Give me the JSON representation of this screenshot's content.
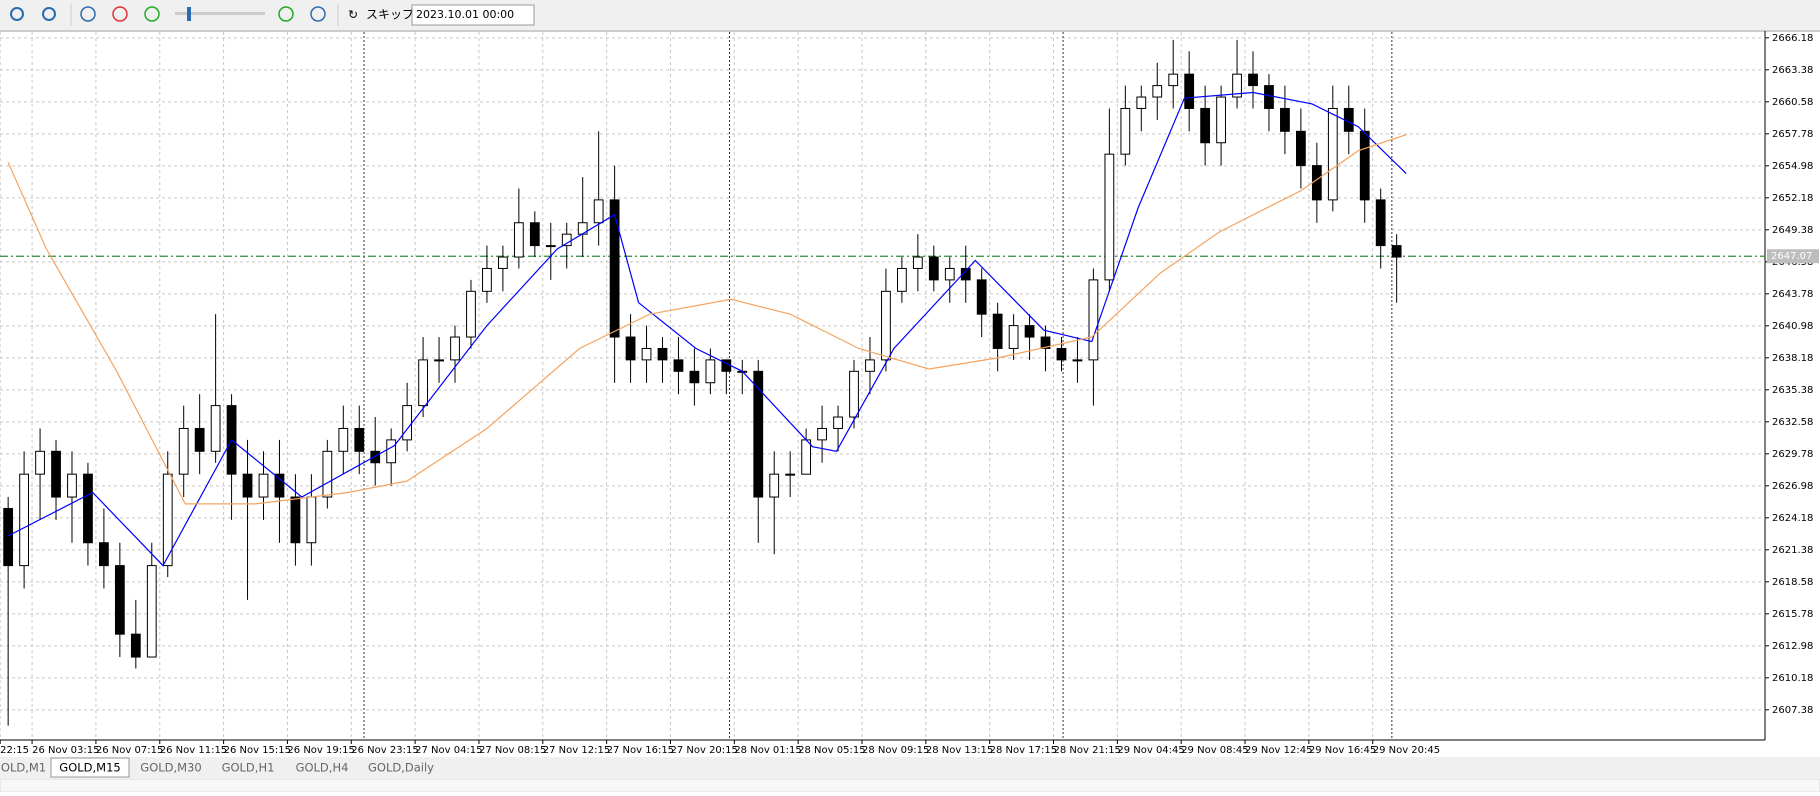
{
  "toolbar": {
    "skip_label": "スキップ",
    "date": "2023.10.01 00:00"
  },
  "tabs": [
    "OLD,M1",
    "GOLD,M15",
    "GOLD,M30",
    "GOLD,H1",
    "GOLD,H4",
    "GOLD,Daily"
  ],
  "active_tab": 1,
  "chart_data": {
    "type": "candlestick",
    "open": [
      2625,
      2620,
      2628,
      2630,
      2626,
      2628,
      2622,
      2620,
      2614,
      2612,
      2620,
      2628,
      2632,
      2630,
      2634,
      2628,
      2626,
      2628,
      2626,
      2622,
      2626,
      2630,
      2632,
      2630,
      2629,
      2631,
      2634,
      2638,
      2638,
      2640,
      2644,
      2646,
      2647,
      2650,
      2648,
      2648,
      2649,
      2650,
      2652,
      2640,
      2638,
      2639,
      2638,
      2637,
      2636,
      2638,
      2637,
      2637,
      2626,
      2628,
      2628,
      2631,
      2632,
      2633,
      2637,
      2638,
      2644,
      2646,
      2647,
      2645,
      2646,
      2645,
      2642,
      2639,
      2641,
      2640,
      2639,
      2638,
      2638,
      2645,
      2656,
      2660,
      2661,
      2662,
      2663,
      2660,
      2657,
      2661,
      2663,
      2662,
      2660,
      2658,
      2655,
      2652,
      2660,
      2658,
      2652,
      2648
    ],
    "high": [
      2626,
      2630,
      2632,
      2631,
      2630,
      2629,
      2625,
      2622,
      2617,
      2622,
      2630,
      2634,
      2635,
      2642,
      2635,
      2631,
      2630,
      2631,
      2628,
      2628,
      2631,
      2634,
      2634,
      2633,
      2632,
      2636,
      2640,
      2640,
      2641,
      2645,
      2648,
      2648,
      2653,
      2651,
      2650,
      2650,
      2654,
      2658,
      2655,
      2642,
      2641,
      2640,
      2640,
      2639,
      2639,
      2638,
      2638,
      2638,
      2630,
      2630,
      2632,
      2634,
      2634,
      2638,
      2640,
      2646,
      2647,
      2649,
      2648,
      2647,
      2648,
      2646,
      2643,
      2642,
      2642,
      2641,
      2640,
      2640,
      2646,
      2660,
      2662,
      2662,
      2664,
      2666,
      2665,
      2662,
      2662,
      2666,
      2665,
      2663,
      2662,
      2660,
      2657,
      2662,
      2662,
      2660,
      2653,
      2649
    ],
    "low": [
      2606,
      2618,
      2624,
      2624,
      2622,
      2620,
      2618,
      2612,
      2611,
      2612,
      2619,
      2626,
      2628,
      2629,
      2624,
      2617,
      2624,
      2622,
      2620,
      2620,
      2625,
      2628,
      2628,
      2627,
      2627,
      2630,
      2633,
      2636,
      2636,
      2639,
      2643,
      2644,
      2646,
      2647,
      2645,
      2646,
      2647,
      2648,
      2636,
      2636,
      2636,
      2636,
      2635,
      2634,
      2635,
      2635,
      2635,
      2622,
      2621,
      2626,
      2628,
      2629,
      2630,
      2632,
      2635,
      2637,
      2643,
      2644,
      2644,
      2643,
      2643,
      2640,
      2637,
      2638,
      2638,
      2637,
      2637,
      2636,
      2634,
      2644,
      2655,
      2658,
      2659,
      2660,
      2658,
      2655,
      2655,
      2660,
      2660,
      2658,
      2656,
      2653,
      2650,
      2651,
      2656,
      2650,
      2646,
      2643
    ],
    "close": [
      2620,
      2628,
      2630,
      2626,
      2628,
      2622,
      2620,
      2614,
      2612,
      2620,
      2628,
      2632,
      2630,
      2634,
      2628,
      2626,
      2628,
      2626,
      2622,
      2626,
      2630,
      2632,
      2630,
      2629,
      2631,
      2634,
      2638,
      2638,
      2640,
      2644,
      2646,
      2647,
      2650,
      2648,
      2648,
      2649,
      2650,
      2652,
      2640,
      2638,
      2639,
      2638,
      2637,
      2636,
      2638,
      2637,
      2637,
      2626,
      2628,
      2628,
      2631,
      2632,
      2633,
      2637,
      2638,
      2644,
      2646,
      2647,
      2645,
      2646,
      2645,
      2642,
      2639,
      2641,
      2640,
      2639,
      2638,
      2638,
      2645,
      2656,
      2660,
      2661,
      2662,
      2663,
      2660,
      2657,
      2661,
      2663,
      2662,
      2660,
      2658,
      2655,
      2652,
      2660,
      2658,
      2652,
      2648,
      2647
    ],
    "bull_color": "#ffffff",
    "bear_color": "#000000",
    "candle_outline": "#000000",
    "lines": [
      {
        "color": "#0000ff",
        "x": [
          0,
          5.3,
          9.7,
          14,
          18.4,
          24.2,
          30,
          34.4,
          38,
          39.5,
          43.1,
          46,
          50.4,
          51.9,
          55.5,
          60.6,
          64.9,
          67.9,
          70.8,
          73.7,
          78,
          81.7,
          84.6,
          87.6
        ],
        "values": [
          2622.6,
          2626.4,
          2620,
          2631,
          2626,
          2630.5,
          2641,
          2647.7,
          2650.7,
          2643,
          2639,
          2637,
          2630.4,
          2630,
          2639,
          2646.7,
          2640.6,
          2639.6,
          2651.3,
          2660.9,
          2661.4,
          2660.4,
          2658.4,
          2654.3
        ]
      },
      {
        "color": "#f4a460",
        "x": [
          0,
          2.4,
          6.8,
          11.1,
          15.5,
          21.3,
          25,
          30,
          35.8,
          40.2,
          45.3,
          49,
          53.3,
          57.7,
          62.1,
          67.9,
          72.2,
          75.9,
          81,
          84.6,
          87.6
        ],
        "values": [
          2655.3,
          2647.7,
          2637,
          2625.4,
          2625.4,
          2626.4,
          2627.4,
          2632,
          2639,
          2642,
          2643.3,
          2642,
          2639,
          2637.2,
          2638.2,
          2640,
          2645.6,
          2649.2,
          2652.8,
          2656.3,
          2657.7
        ]
      }
    ],
    "price_line": {
      "value": 2647.07,
      "color": "#2e8b3a"
    },
    "separators": [
      22.3,
      45.2,
      66.1,
      86.7
    ],
    "xlim": [
      -0.51,
      110.08
    ],
    "xticks": [
      {
        "value": -0.5,
        "label": "22:15"
      },
      {
        "value": 1.5,
        "label": "26 Nov 03:15"
      },
      {
        "value": 5.5,
        "label": "26 Nov 07:15"
      },
      {
        "value": 9.5,
        "label": "26 Nov 11:15"
      },
      {
        "value": 13.5,
        "label": "26 Nov 15:15"
      },
      {
        "value": 17.5,
        "label": "26 Nov 19:15"
      },
      {
        "value": 21.5,
        "label": "26 Nov 23:15"
      },
      {
        "value": 25.5,
        "label": "27 Nov 04:15"
      },
      {
        "value": 29.5,
        "label": "27 Nov 08:15"
      },
      {
        "value": 33.5,
        "label": "27 Nov 12:15"
      },
      {
        "value": 37.5,
        "label": "27 Nov 16:15"
      },
      {
        "value": 41.5,
        "label": "27 Nov 20:15"
      },
      {
        "value": 45.5,
        "label": "28 Nov 01:15"
      },
      {
        "value": 49.5,
        "label": "28 Nov 05:15"
      },
      {
        "value": 53.5,
        "label": "28 Nov 09:15"
      },
      {
        "value": 57.5,
        "label": "28 Nov 13:15"
      },
      {
        "value": 61.5,
        "label": "28 Nov 17:15"
      },
      {
        "value": 65.5,
        "label": "28 Nov 21:15"
      },
      {
        "value": 69.5,
        "label": "29 Nov 04:45"
      },
      {
        "value": 73.5,
        "label": "29 Nov 08:45"
      },
      {
        "value": 77.5,
        "label": "29 Nov 12:45"
      },
      {
        "value": 81.5,
        "label": "29 Nov 16:45"
      },
      {
        "value": 85.5,
        "label": "29 Nov 20:45"
      }
    ],
    "ylim": [
      2604.74,
      2666.69
    ],
    "yticks": [
      2666.18,
      2663.38,
      2660.58,
      2657.78,
      2654.98,
      2652.18,
      2649.38,
      2646.58,
      2643.78,
      2640.98,
      2638.18,
      2635.38,
      2632.58,
      2629.78,
      2626.98,
      2624.18,
      2621.38,
      2618.58,
      2615.78,
      2612.98,
      2610.18,
      2607.38
    ],
    "grid": true
  }
}
